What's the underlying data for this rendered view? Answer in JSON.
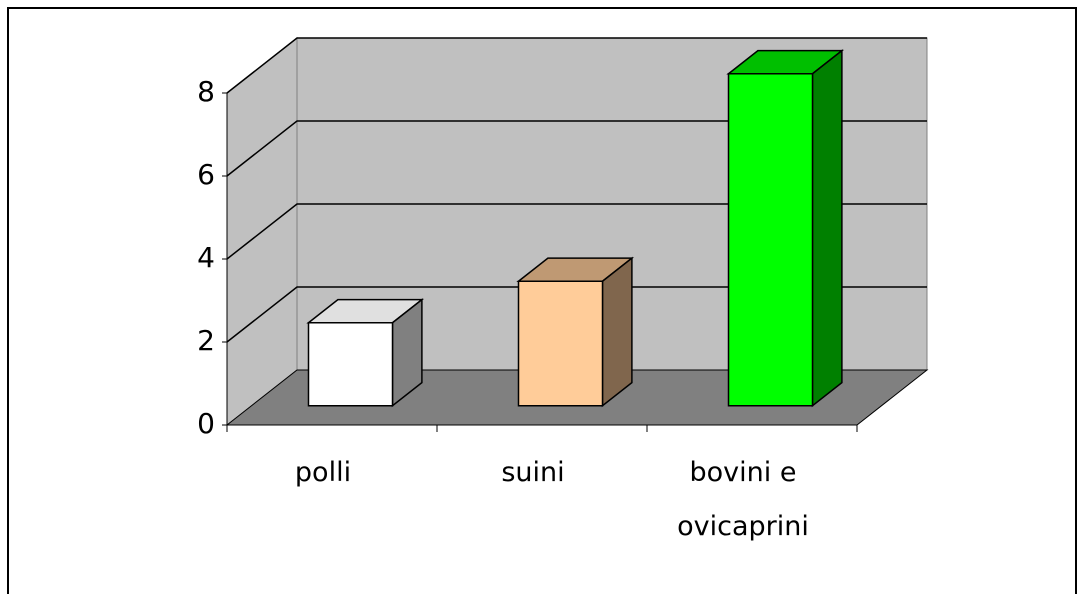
{
  "chart_data": {
    "type": "bar3d",
    "categories": [
      "polli",
      "suini",
      "bovini e ovicaprini"
    ],
    "values": [
      2,
      3,
      8
    ],
    "colors": [
      "#ffffff",
      "#ffcc99",
      "#00ff00"
    ],
    "ylim": [
      0,
      8
    ],
    "yticks": [
      0,
      2,
      4,
      6,
      8
    ],
    "grid": true
  }
}
